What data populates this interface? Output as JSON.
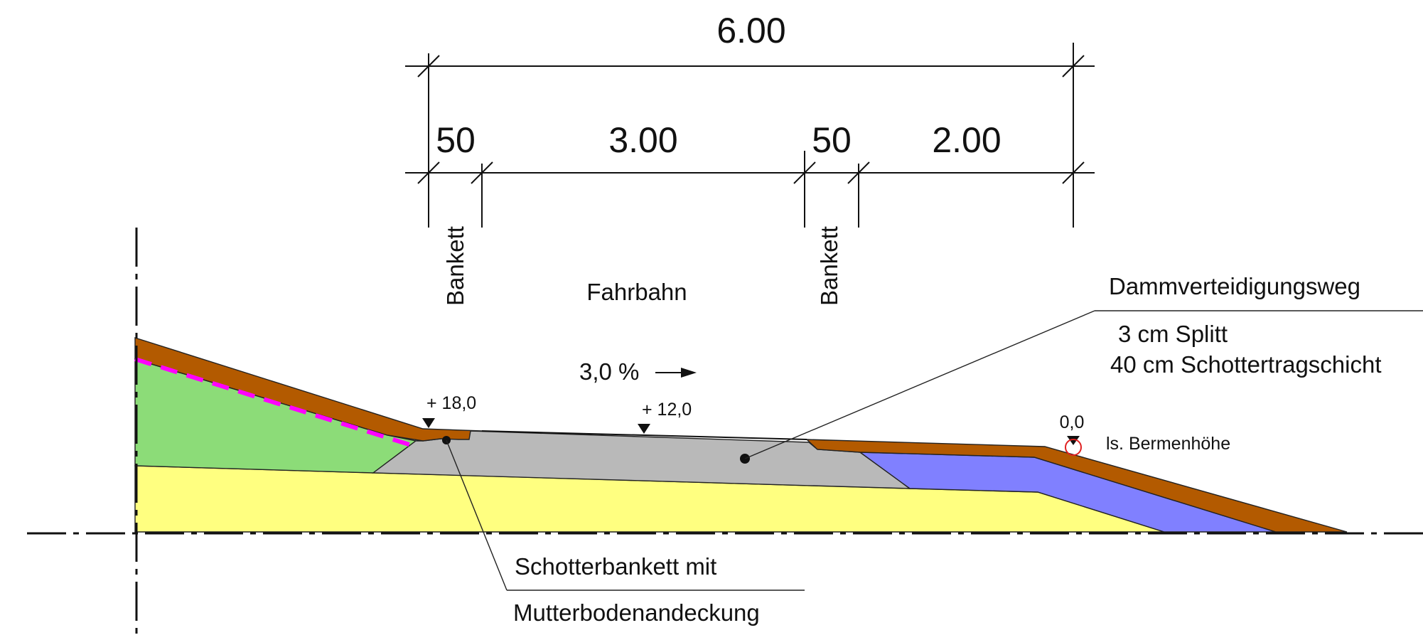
{
  "dimensions": {
    "total": "6.00",
    "bankett_left": "50",
    "fahrbahn_width": "3.00",
    "bankett_right": "50",
    "outer_width": "2.00"
  },
  "zones": {
    "bankett_left": "Bankett",
    "fahrbahn": "Fahrbahn",
    "bankett_right": "Bankett"
  },
  "slope": {
    "value": "3,0 %"
  },
  "elevations": {
    "left": "+ 18,0",
    "middle": "+ 12,0",
    "right": "0,0",
    "right_note": "ls. Bermenhöhe"
  },
  "callouts": {
    "road": {
      "title": "Dammverteidigungsweg",
      "line1": "3 cm Splitt",
      "line2": "40 cm Schottertragschicht"
    },
    "shoulder": {
      "line1": "Schotterbankett mit",
      "line2": "Mutterbodenandeckung"
    }
  },
  "colors": {
    "topsoil": "#b35a00",
    "green_fill": "#8cdc78",
    "yellow_fill": "#ffff80",
    "gravel": "#b9b9b9",
    "blue_fill": "#8080ff",
    "magenta_dash": "#ff00ff",
    "marker_red": "#e02020"
  }
}
